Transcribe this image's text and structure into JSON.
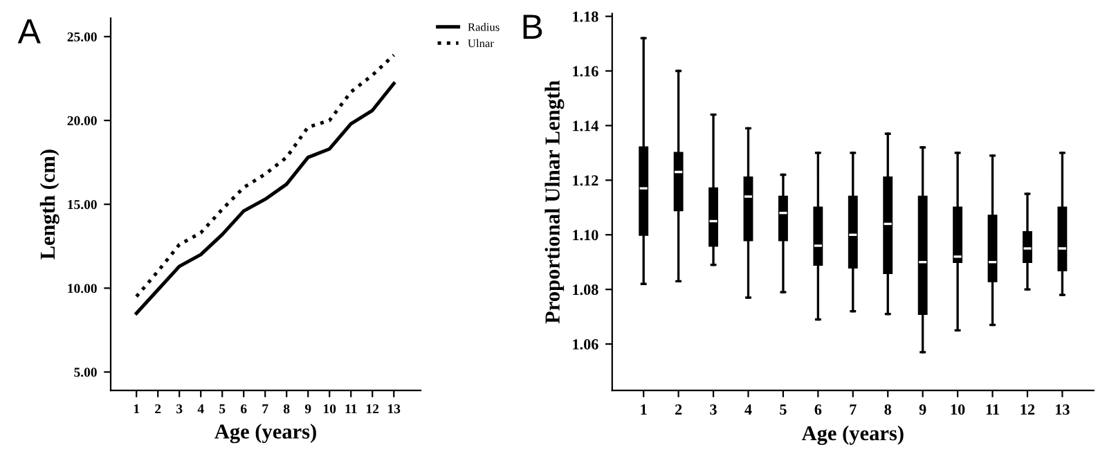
{
  "chart_data": [
    {
      "type": "line",
      "annotations": [
        "A"
      ],
      "xlabel": "Age (years)",
      "ylabel": "Length (cm)",
      "categories": [
        "1",
        "2",
        "3",
        "4",
        "5",
        "6",
        "7",
        "8",
        "9",
        "10",
        "11",
        "12",
        "13"
      ],
      "series": [
        {
          "name": "Radius",
          "color": "#000000",
          "line_style": "solid",
          "values": [
            8.5,
            9.9,
            11.3,
            12.0,
            13.2,
            14.6,
            15.3,
            16.2,
            17.8,
            18.3,
            19.8,
            20.6,
            22.2
          ]
        },
        {
          "name": "Ulnar",
          "color": "#000000",
          "line_style": "dotted",
          "values": [
            9.5,
            11.0,
            12.6,
            13.3,
            14.7,
            16.0,
            16.8,
            17.8,
            19.6,
            20.0,
            21.7,
            22.7,
            23.9
          ]
        }
      ],
      "ylim": [
        3.9,
        26.1
      ],
      "yticks": [
        {
          "value": 5,
          "label": "5.00"
        },
        {
          "value": 10,
          "label": "10.00"
        },
        {
          "value": 15,
          "label": "15.00"
        },
        {
          "value": 20,
          "label": "20.00"
        },
        {
          "value": 25,
          "label": "25.00"
        }
      ],
      "grid": false,
      "legend": "top right",
      "marker": "none"
    },
    {
      "type": "box",
      "annotations": [
        "B"
      ],
      "xlabel": "Age (years)",
      "ylabel": "Proportional Ulnar Length",
      "categories": [
        "1",
        "2",
        "3",
        "4",
        "5",
        "6",
        "7",
        "8",
        "9",
        "10",
        "11",
        "12",
        "13"
      ],
      "color": "#000000",
      "boxes": [
        {
          "low": 1.082,
          "q1": 1.1,
          "median": 1.117,
          "q3": 1.132,
          "high": 1.172
        },
        {
          "low": 1.083,
          "q1": 1.109,
          "median": 1.123,
          "q3": 1.13,
          "high": 1.16
        },
        {
          "low": 1.089,
          "q1": 1.096,
          "median": 1.105,
          "q3": 1.117,
          "high": 1.144
        },
        {
          "low": 1.077,
          "q1": 1.098,
          "median": 1.114,
          "q3": 1.121,
          "high": 1.139
        },
        {
          "low": 1.079,
          "q1": 1.098,
          "median": 1.108,
          "q3": 1.114,
          "high": 1.122
        },
        {
          "low": 1.069,
          "q1": 1.089,
          "median": 1.096,
          "q3": 1.11,
          "high": 1.13
        },
        {
          "low": 1.072,
          "q1": 1.088,
          "median": 1.1,
          "q3": 1.114,
          "high": 1.13
        },
        {
          "low": 1.071,
          "q1": 1.086,
          "median": 1.104,
          "q3": 1.121,
          "high": 1.137
        },
        {
          "low": 1.057,
          "q1": 1.071,
          "median": 1.09,
          "q3": 1.114,
          "high": 1.132
        },
        {
          "low": 1.065,
          "q1": 1.09,
          "median": 1.092,
          "q3": 1.11,
          "high": 1.13
        },
        {
          "low": 1.067,
          "q1": 1.083,
          "median": 1.09,
          "q3": 1.107,
          "high": 1.129
        },
        {
          "low": 1.08,
          "q1": 1.09,
          "median": 1.095,
          "q3": 1.101,
          "high": 1.115
        },
        {
          "low": 1.078,
          "q1": 1.087,
          "median": 1.095,
          "q3": 1.11,
          "high": 1.13
        }
      ],
      "ylim": [
        1.043,
        1.181
      ],
      "yticks": [
        1.06,
        1.08,
        {
          "value": 1.1,
          "label": "1.10"
        },
        1.12,
        1.14,
        1.16,
        1.18
      ],
      "grid": false
    }
  ]
}
